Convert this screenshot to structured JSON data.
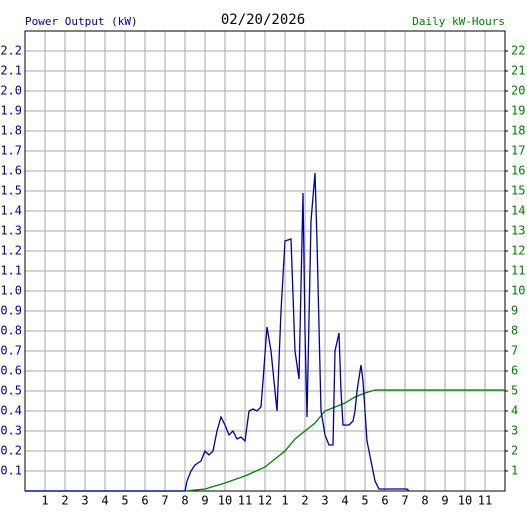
{
  "chart_data": {
    "type": "line",
    "title": "02/20/2026",
    "xlim": [
      0,
      24
    ],
    "xticks": [
      1,
      2,
      3,
      4,
      5,
      6,
      7,
      8,
      9,
      10,
      11,
      12,
      {
        "value": 13,
        "label": "1"
      },
      {
        "value": 14,
        "label": "2"
      },
      {
        "value": 15,
        "label": "3"
      },
      {
        "value": 16,
        "label": "4"
      },
      {
        "value": 17,
        "label": "5"
      },
      {
        "value": 18,
        "label": "6"
      },
      {
        "value": 19,
        "label": "7"
      },
      {
        "value": 20,
        "label": "8"
      },
      {
        "value": 21,
        "label": "9"
      },
      {
        "value": 22,
        "label": "10"
      },
      {
        "value": 23,
        "label": "11"
      }
    ],
    "ylim": [
      0,
      2.3
    ],
    "yticks": [
      0.1,
      0.2,
      0.3,
      0.4,
      0.5,
      0.6,
      0.7,
      0.8,
      0.9,
      {
        "value": 1,
        "label": "1.0"
      },
      1.1,
      1.2,
      1.3,
      1.4,
      1.5,
      1.6,
      1.7,
      1.8,
      1.9,
      {
        "value": 2,
        "label": "2.0"
      },
      2.1,
      2.2
    ],
    "y2lim": [
      0,
      23
    ],
    "y2ticks": [
      1,
      2,
      3,
      4,
      5,
      6,
      7,
      8,
      9,
      10,
      11,
      12,
      13,
      14,
      15,
      16,
      17,
      18,
      19,
      20,
      21,
      22
    ],
    "grid": true,
    "series": [
      {
        "name": "Power Output (kW)",
        "color": "#0000a0",
        "x": [
          0,
          8,
          8.1,
          8.3,
          8.5,
          8.8,
          9,
          9.2,
          9.4,
          9.6,
          9.8,
          10,
          10.2,
          10.4,
          10.6,
          10.8,
          11,
          11.2,
          11.4,
          11.6,
          11.8,
          11.9,
          12.1,
          12.3,
          12.5,
          12.6,
          12.8,
          13,
          13.3,
          13.5,
          13.7,
          13.9,
          14,
          14.1,
          14.3,
          14.5,
          14.6,
          14.8,
          15,
          15.2,
          15.4,
          15.5,
          15.7,
          15.8,
          15.9,
          16.2,
          16.4,
          16.5,
          16.6,
          16.8,
          16.9,
          17.1,
          17.3,
          17.4,
          17.5,
          17.7,
          18,
          19.1,
          19.2
        ],
        "values": [
          0,
          0,
          0.05,
          0.1,
          0.13,
          0.15,
          0.2,
          0.18,
          0.2,
          0.3,
          0.37,
          0.33,
          0.28,
          0.3,
          0.26,
          0.27,
          0.25,
          0.4,
          0.41,
          0.4,
          0.42,
          0.55,
          0.82,
          0.7,
          0.5,
          0.4,
          0.9,
          1.25,
          1.26,
          0.7,
          0.56,
          1.49,
          0.8,
          0.37,
          1.35,
          1.59,
          1.25,
          0.4,
          0.28,
          0.23,
          0.23,
          0.7,
          0.79,
          0.5,
          0.33,
          0.33,
          0.35,
          0.4,
          0.5,
          0.63,
          0.55,
          0.25,
          0.15,
          0.1,
          0.05,
          0.01,
          0.01,
          0.01,
          0
        ]
      },
      {
        "name": "Daily kW-Hours",
        "color": "#008000",
        "axis": "y2",
        "x": [
          0,
          8,
          9,
          10,
          11,
          12,
          13,
          13.5,
          14,
          14.5,
          15,
          15.5,
          16,
          16.5,
          17,
          17.5,
          24
        ],
        "values": [
          0,
          0,
          0.1,
          0.4,
          0.75,
          1.2,
          2.0,
          2.6,
          3.0,
          3.4,
          4.0,
          4.2,
          4.4,
          4.7,
          4.9,
          5.05,
          5.05
        ]
      }
    ]
  }
}
